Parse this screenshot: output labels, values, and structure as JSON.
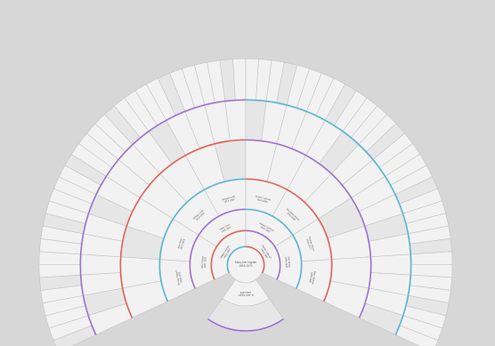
{
  "colors": {
    "background": "#d7d7d7",
    "segment_fill": "#f2f2f2",
    "segment_alt": "#e6e6e6",
    "ring_colors": [
      "#4db8d8",
      "#7fc35a",
      "#e85a4f",
      "#f0c419",
      "#9b6bd6",
      "#3fa7c9"
    ]
  },
  "root": {
    "name": "Mary Ann Ingram",
    "dates": "1895-1972"
  },
  "descendant": {
    "name": "E. Jack Ingram",
    "dates": "1920-1975"
  },
  "ancestors": {
    "generation_1": [
      {
        "name": "William Ingram",
        "dates": "1866-1941"
      },
      {
        "name": "Sarah Cathcart",
        "dates": "1869-1950"
      }
    ],
    "generation_2": [
      {
        "name": "John Ingram",
        "dates": "1837-1902"
      },
      {
        "name": "Mary Cook",
        "dates": "1840-1911"
      },
      {
        "name": "Robert Cathcart",
        "dates": "1842-1915"
      },
      {
        "name": "Ann Brown",
        "dates": "1845-1920"
      }
    ],
    "generation_3": [
      {
        "name": "Samuel Ingram",
        "dates": "1808-1870"
      },
      {
        "name": "Jane Reed",
        "dates": "1812-1879"
      },
      {
        "name": "William Cook",
        "dates": "1810-1866"
      },
      {
        "name": "Margaret Hill",
        "dates": "1814-1880"
      },
      {
        "name": "James Cathcart",
        "dates": "1815-1885"
      },
      {
        "name": "Elizabeth Moore",
        "dates": "1818-1890"
      },
      {
        "name": "Thomas Brown",
        "dates": "1816-1877"
      },
      {
        "name": "Mary Watson",
        "dates": "1820-1895"
      }
    ]
  },
  "outer_generations": {
    "generation_4_count": 16,
    "generation_5_count": 32,
    "generation_6_count": 64
  }
}
